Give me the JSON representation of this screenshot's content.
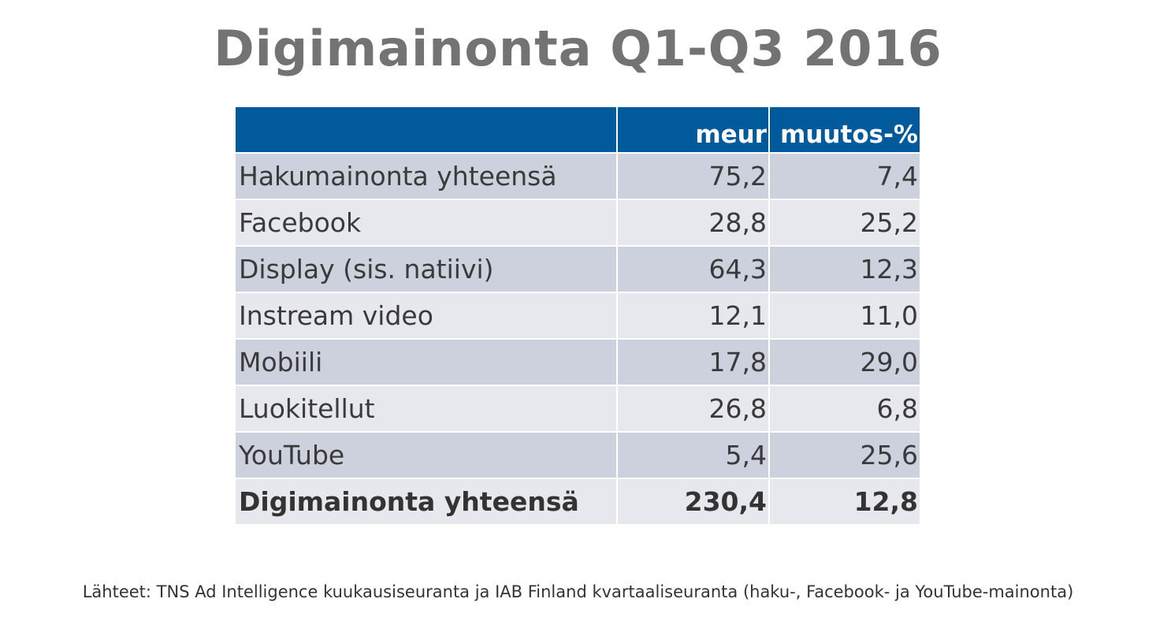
{
  "title": "Digimainonta Q1-Q3 2016",
  "table": {
    "headers": [
      "",
      "meur",
      "muutos-%"
    ],
    "rows": [
      {
        "label": "Hakumainonta yhteensä",
        "meur": "75,2",
        "change": "7,4"
      },
      {
        "label": "Facebook",
        "meur": "28,8",
        "change": "25,2"
      },
      {
        "label": "Display (sis. natiivi)",
        "meur": "64,3",
        "change": "12,3"
      },
      {
        "label": "Instream video",
        "meur": "12,1",
        "change": "11,0"
      },
      {
        "label": "Mobiili",
        "meur": "17,8",
        "change": "29,0"
      },
      {
        "label": "Luokitellut",
        "meur": "26,8",
        "change": "6,8"
      },
      {
        "label": "YouTube",
        "meur": "5,4",
        "change": "25,6"
      }
    ],
    "total": {
      "label": "Digimainonta yhteensä",
      "meur": "230,4",
      "change": "12,8"
    }
  },
  "source": "Lähteet: TNS Ad Intelligence kuukausiseuranta ja IAB Finland kvartaaliseuranta (haku-, Facebook- ja YouTube-mainonta)",
  "colors": {
    "header_bg": "#005a9c",
    "row_dark": "#cdd1dd",
    "row_light": "#e6e8ee",
    "title": "#737373"
  }
}
